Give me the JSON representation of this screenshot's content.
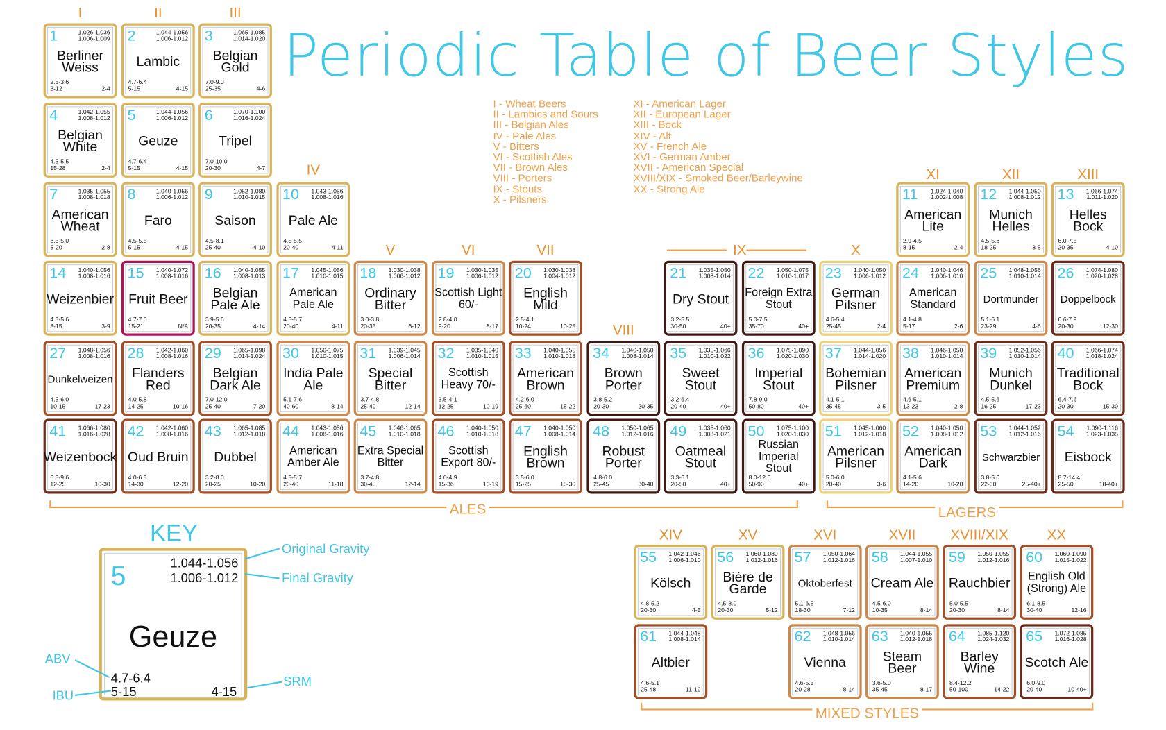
{
  "title": "Periodic Table of Beer Styles",
  "legend_left": [
    "I - Wheat Beers",
    "II - Lambics and Sours",
    "III - Belgian Ales",
    "IV - Pale Ales",
    "V - Bitters",
    "VI - Scottish Ales",
    "VII - Brown Ales",
    "VIII - Porters",
    "IX - Stouts",
    "X - Pilsners"
  ],
  "legend_right": [
    "XI - American Lager",
    "XII - European Lager",
    "XIII - Bock",
    "XIV - Alt",
    "XV - French Ale",
    "XVI - German Amber",
    "XVII - American Special",
    "XVIII/XIX - Smoked Beer/Barleywine",
    "XX - Strong Ale"
  ],
  "colors": {
    "title": "#3fc7e6",
    "group_labels": "#f0a046",
    "numbers": "#3fc7e6",
    "gold": "#d8b35a",
    "pale": "#e9d27a",
    "light_brown": "#cd8748",
    "brown": "#a24e26",
    "dark_brown": "#6b2b1a",
    "very_dark": "#3f1a14",
    "fruit": "#b0125a"
  },
  "groups": [
    "I",
    "II",
    "III",
    "IV",
    "V",
    "VI",
    "VII",
    "VIII",
    "IX",
    "X",
    "XI",
    "XII",
    "XIII",
    "XIV",
    "XV",
    "XVI",
    "XVII",
    "XVIII/XIX",
    "XX"
  ],
  "sections": {
    "ales": "ALES",
    "lagers": "LAGERS",
    "mixed": "MIXED STYLES"
  },
  "styles": [
    {
      "n": "1",
      "name": "Berliner Weiss",
      "og": "1.026-1.036",
      "fg": "1.006-1.009",
      "abv": "2.5-3.6",
      "ibu": "3-12",
      "srm": "2-4",
      "color": "gold"
    },
    {
      "n": "2",
      "name": "Lambic",
      "og": "1.044-1.056",
      "fg": "1.006-1.012",
      "abv": "4.7-6.4",
      "ibu": "5-15",
      "srm": "4-15",
      "color": "gold"
    },
    {
      "n": "3",
      "name": "Belgian Gold",
      "og": "1.065-1.085",
      "fg": "1.014-1.020",
      "abv": "7.0-9.0",
      "ibu": "25-35",
      "srm": "4-6",
      "color": "gold"
    },
    {
      "n": "4",
      "name": "Belgian White",
      "og": "1.042-1.055",
      "fg": "1.008-1.012",
      "abv": "4.5-5.5",
      "ibu": "15-28",
      "srm": "2-4",
      "color": "gold"
    },
    {
      "n": "5",
      "name": "Geuze",
      "og": "1.044-1.056",
      "fg": "1.006-1.012",
      "abv": "4.7-6.4",
      "ibu": "5-15",
      "srm": "4-15",
      "color": "gold"
    },
    {
      "n": "6",
      "name": "Tripel",
      "og": "1.070-1.100",
      "fg": "1.016-1.024",
      "abv": "7.0-10.0",
      "ibu": "20-30",
      "srm": "4-7",
      "color": "gold"
    },
    {
      "n": "7",
      "name": "American Wheat",
      "og": "1.035-1.055",
      "fg": "1.008-1.018",
      "abv": "3.5-5.0",
      "ibu": "5-20",
      "srm": "2-8",
      "color": "gold"
    },
    {
      "n": "8",
      "name": "Faro",
      "og": "1.040-1.056",
      "fg": "1.006-1.012",
      "abv": "4.5-5.5",
      "ibu": "5-15",
      "srm": "4-15",
      "color": "gold"
    },
    {
      "n": "9",
      "name": "Saison",
      "og": "1.052-1.080",
      "fg": "1.010-1.015",
      "abv": "4.5-8.1",
      "ibu": "25-40",
      "srm": "4-10",
      "color": "gold"
    },
    {
      "n": "10",
      "name": "Pale Ale",
      "og": "1.043-1.056",
      "fg": "1.008-1.016",
      "abv": "4.5-5.5",
      "ibu": "20-40",
      "srm": "4-11",
      "color": "gold"
    },
    {
      "n": "11",
      "name": "American Lite",
      "og": "1.024-1.040",
      "fg": "1.002-1.008",
      "abv": "2.9-4.5",
      "ibu": "8-15",
      "srm": "2-4",
      "color": "gold"
    },
    {
      "n": "12",
      "name": "Munich Helles",
      "og": "1.044-1.050",
      "fg": "1.008-1.012",
      "abv": "4.5-5.6",
      "ibu": "18-25",
      "srm": "3-5",
      "color": "gold"
    },
    {
      "n": "13",
      "name": "Helles Bock",
      "og": "1.066-1.074",
      "fg": "1.011-1.020",
      "abv": "6.0-7.5",
      "ibu": "20-35",
      "srm": "4-10",
      "color": "gold"
    },
    {
      "n": "14",
      "name": "Weizenbier",
      "og": "1.040-1.056",
      "fg": "1.008-1.016",
      "abv": "4.3-5.6",
      "ibu": "8-15",
      "srm": "3-9",
      "color": "gold"
    },
    {
      "n": "15",
      "name": "Fruit Beer",
      "og": "1.040-1.072",
      "fg": "1.008-1.016",
      "abv": "4.7-7.0",
      "ibu": "15-21",
      "srm": "N/A",
      "color": "fruit"
    },
    {
      "n": "16",
      "name": "Belgian Pale Ale",
      "og": "1.040-1.055",
      "fg": "1.008-1.013",
      "abv": "3.9-5.6",
      "ibu": "20-35",
      "srm": "4-14",
      "color": "gold"
    },
    {
      "n": "17",
      "name": "American Pale Ale",
      "og": "1.045-1.056",
      "fg": "1.010-1.015",
      "abv": "4.5-5.7",
      "ibu": "20-40",
      "srm": "4-11",
      "color": "gold"
    },
    {
      "n": "18",
      "name": "Ordinary Bitter",
      "og": "1.030-1.038",
      "fg": "1.006-1.012",
      "abv": "3.0-3.8",
      "ibu": "20-35",
      "srm": "6-12",
      "color": "light_brown"
    },
    {
      "n": "19",
      "name": "Scottish Light 60/-",
      "og": "1.030-1.035",
      "fg": "1.006-1.012",
      "abv": "2.8-4.0",
      "ibu": "9-20",
      "srm": "8-17",
      "color": "light_brown"
    },
    {
      "n": "20",
      "name": "English Mild",
      "og": "1.030-1.038",
      "fg": "1.004-1.012",
      "abv": "2.5-4.1",
      "ibu": "10-24",
      "srm": "10-25",
      "color": "brown"
    },
    {
      "n": "21",
      "name": "Dry Stout",
      "og": "1.035-1.050",
      "fg": "1.008-1.014",
      "abv": "3.2-5.5",
      "ibu": "30-50",
      "srm": "40+",
      "color": "very_dark"
    },
    {
      "n": "22",
      "name": "Foreign Extra Stout",
      "og": "1.050-1.075",
      "fg": "1.010-1.017",
      "abv": "5.0-7.5",
      "ibu": "35-70",
      "srm": "40+",
      "color": "very_dark"
    },
    {
      "n": "23",
      "name": "German Pilsner",
      "og": "1.040-1.050",
      "fg": "1.006-1.012",
      "abv": "4.6-5.4",
      "ibu": "25-45",
      "srm": "2-4",
      "color": "pale"
    },
    {
      "n": "24",
      "name": "American Standard",
      "og": "1.040-1.046",
      "fg": "1.006-1.010",
      "abv": "4.1-4.8",
      "ibu": "5-17",
      "srm": "2-6",
      "color": "light_brown"
    },
    {
      "n": "25",
      "name": "Dortmunder",
      "og": "1.048-1.056",
      "fg": "1.010-1.014",
      "abv": "5.1-6.1",
      "ibu": "23-29",
      "srm": "4-6",
      "color": "light_brown"
    },
    {
      "n": "26",
      "name": "Doppelbock",
      "og": "1.074-1.080",
      "fg": "1.020-1.028",
      "abv": "6.6-7.9",
      "ibu": "20-30",
      "srm": "12-30",
      "color": "dark_brown"
    },
    {
      "n": "27",
      "name": "Dunkelweizen",
      "og": "1.048-1.056",
      "fg": "1.008-1.016",
      "abv": "4.5-6.0",
      "ibu": "10-15",
      "srm": "17-23",
      "color": "brown"
    },
    {
      "n": "28",
      "name": "Flanders Red",
      "og": "1.042-1.060",
      "fg": "1.008-1.016",
      "abv": "4.0-5.8",
      "ibu": "14-25",
      "srm": "10-16",
      "color": "brown"
    },
    {
      "n": "29",
      "name": "Belgian Dark Ale",
      "og": "1.065-1.098",
      "fg": "1.014-1.024",
      "abv": "7.0-12.0",
      "ibu": "25-40",
      "srm": "7-20",
      "color": "brown"
    },
    {
      "n": "30",
      "name": "India Pale Ale",
      "og": "1.050-1.075",
      "fg": "1.010-1.015",
      "abv": "5.1-7.6",
      "ibu": "40-60",
      "srm": "8-14",
      "color": "light_brown"
    },
    {
      "n": "31",
      "name": "Special Bitter",
      "og": "1.039-1.045",
      "fg": "1.006-1.014",
      "abv": "3.7-4.8",
      "ibu": "25-40",
      "srm": "12-14",
      "color": "light_brown"
    },
    {
      "n": "32",
      "name": "Scottish Heavy 70/-",
      "og": "1.035-1.040",
      "fg": "1.010-1.015",
      "abv": "3.5-4.1",
      "ibu": "12-25",
      "srm": "10-19",
      "color": "brown"
    },
    {
      "n": "33",
      "name": "American Brown",
      "og": "1.040-1.055",
      "fg": "1.010-1.018",
      "abv": "4.2-6.0",
      "ibu": "25-60",
      "srm": "15-22",
      "color": "brown"
    },
    {
      "n": "34",
      "name": "Brown Porter",
      "og": "1.040-1.050",
      "fg": "1.008-1.014",
      "abv": "3.8-5.2",
      "ibu": "20-30",
      "srm": "20-35",
      "color": "very_dark"
    },
    {
      "n": "35",
      "name": "Sweet Stout",
      "og": "1.035-1.066",
      "fg": "1.010-1.022",
      "abv": "3.2-6.4",
      "ibu": "20-40",
      "srm": "40+",
      "color": "very_dark"
    },
    {
      "n": "36",
      "name": "Imperial Stout",
      "og": "1.075-1.090",
      "fg": "1.020-1.030",
      "abv": "7.8-9.0",
      "ibu": "50-80",
      "srm": "40+",
      "color": "very_dark"
    },
    {
      "n": "37",
      "name": "Bohemian Pilsner",
      "og": "1.044-1.056",
      "fg": "1.014-1.020",
      "abv": "4.1-5.1",
      "ibu": "35-45",
      "srm": "3-5",
      "color": "pale"
    },
    {
      "n": "38",
      "name": "American Premium",
      "og": "1.046-1.050",
      "fg": "1.010-1.014",
      "abv": "4.6-5.1",
      "ibu": "13-23",
      "srm": "2-8",
      "color": "light_brown"
    },
    {
      "n": "39",
      "name": "Munich Dunkel",
      "og": "1.052-1.056",
      "fg": "1.010-1.014",
      "abv": "4.5-5.6",
      "ibu": "16-25",
      "srm": "17-23",
      "color": "dark_brown"
    },
    {
      "n": "40",
      "name": "Traditional Bock",
      "og": "1.066-1.074",
      "fg": "1.018-1.024",
      "abv": "6.4-7.6",
      "ibu": "20-30",
      "srm": "15-30",
      "color": "dark_brown"
    },
    {
      "n": "41",
      "name": "Weizenbock",
      "og": "1.066-1.080",
      "fg": "1.016-1.028",
      "abv": "6.5-9.6",
      "ibu": "12-25",
      "srm": "10-30",
      "color": "dark_brown"
    },
    {
      "n": "42",
      "name": "Oud Bruin",
      "og": "1.042-1.060",
      "fg": "1.008-1.016",
      "abv": "4.0-6.5",
      "ibu": "14-30",
      "srm": "12-20",
      "color": "brown"
    },
    {
      "n": "43",
      "name": "Dubbel",
      "og": "1.065-1.085",
      "fg": "1.012-1.018",
      "abv": "3.2-8.0",
      "ibu": "20-25",
      "srm": "10-20",
      "color": "brown"
    },
    {
      "n": "44",
      "name": "American Amber Ale",
      "og": "1.043-1.056",
      "fg": "1.008-1.016",
      "abv": "4.5-5.7",
      "ibu": "20-40",
      "srm": "11-18",
      "color": "light_brown"
    },
    {
      "n": "45",
      "name": "Extra Special Bitter",
      "og": "1.046-1.065",
      "fg": "1.010-1.018",
      "abv": "3.7-4.8",
      "ibu": "30-45",
      "srm": "12-14",
      "color": "light_brown"
    },
    {
      "n": "46",
      "name": "Scottish Export 80/-",
      "og": "1.040-1.050",
      "fg": "1.010-1.018",
      "abv": "4.0-4.9",
      "ibu": "15-36",
      "srm": "10-19",
      "color": "brown"
    },
    {
      "n": "47",
      "name": "English Brown",
      "og": "1.040-1.050",
      "fg": "1.008-1.014",
      "abv": "3.5-6.0",
      "ibu": "15-25",
      "srm": "15-30",
      "color": "brown"
    },
    {
      "n": "48",
      "name": "Robust Porter",
      "og": "1.050-1.065",
      "fg": "1.012-1.016",
      "abv": "4.8-6.0",
      "ibu": "25-45",
      "srm": "30-40",
      "color": "very_dark"
    },
    {
      "n": "49",
      "name": "Oatmeal Stout",
      "og": "1.035-1.060",
      "fg": "1.008-1.021",
      "abv": "3.3-6.1",
      "ibu": "20-50",
      "srm": "40+",
      "color": "very_dark"
    },
    {
      "n": "50",
      "name": "Russian Imperial Stout",
      "og": "1.075-1.100",
      "fg": "1.020-1.030",
      "abv": "8.0-12.0",
      "ibu": "50-90",
      "srm": "40+",
      "color": "very_dark"
    },
    {
      "n": "51",
      "name": "American Pilsner",
      "og": "1.045-1.060",
      "fg": "1.012-1.018",
      "abv": "5.0-6.0",
      "ibu": "20-40",
      "srm": "3-6",
      "color": "pale"
    },
    {
      "n": "52",
      "name": "American Dark",
      "og": "1.040-1.050",
      "fg": "1.008-1.012",
      "abv": "4.1-5.6",
      "ibu": "14-20",
      "srm": "10-20",
      "color": "light_brown"
    },
    {
      "n": "53",
      "name": "Schwarzbier",
      "og": "1.044-1.052",
      "fg": "1.012-1.016",
      "abv": "3.8-5.0",
      "ibu": "22-30",
      "srm": "25-40+",
      "color": "dark_brown"
    },
    {
      "n": "54",
      "name": "Eisbock",
      "og": "1.090-1.116",
      "fg": "1.023-1.035",
      "abv": "8.7-14.4",
      "ibu": "25-50",
      "srm": "18-40+",
      "color": "dark_brown"
    },
    {
      "n": "55",
      "name": "Kölsch",
      "og": "1.042-1.046",
      "fg": "1.006-1.010",
      "abv": "4.8-5.2",
      "ibu": "20-30",
      "srm": "4-5",
      "color": "gold"
    },
    {
      "n": "56",
      "name": "Biére de Garde",
      "og": "1.060-1.080",
      "fg": "1.012-1.016",
      "abv": "4.5-8.0",
      "ibu": "20-30",
      "srm": "5-12",
      "color": "gold"
    },
    {
      "n": "57",
      "name": "Oktoberfest",
      "og": "1.050-1.064",
      "fg": "1.012-1.016",
      "abv": "5.1-6.5",
      "ibu": "18-30",
      "srm": "7-12",
      "color": "light_brown"
    },
    {
      "n": "58",
      "name": "Cream Ale",
      "og": "1.044-1.055",
      "fg": "1.007-1.010",
      "abv": "4.5-6.0",
      "ibu": "10-35",
      "srm": "8-14",
      "color": "light_brown"
    },
    {
      "n": "59",
      "name": "Rauchbier",
      "og": "1.050-1.055",
      "fg": "1.012-1.016",
      "abv": "5.0-5.5",
      "ibu": "20-30",
      "srm": "8-14",
      "color": "brown"
    },
    {
      "n": "60",
      "name": "English Old (Strong) Ale",
      "og": "1.060-1.090",
      "fg": "1.015-1.022",
      "abv": "6.1-8.5",
      "ibu": "30-40",
      "srm": "12-16",
      "color": "brown"
    },
    {
      "n": "61",
      "name": "Altbier",
      "og": "1.044-1.048",
      "fg": "1.008-1.014",
      "abv": "4.6-5.1",
      "ibu": "25-48",
      "srm": "11-19",
      "color": "brown"
    },
    {
      "n": "62",
      "name": "Vienna",
      "og": "1.048-1.056",
      "fg": "1.010-1.014",
      "abv": "4.6-5.5",
      "ibu": "20-28",
      "srm": "8-14",
      "color": "light_brown"
    },
    {
      "n": "63",
      "name": "Steam Beer",
      "og": "1.040-1.055",
      "fg": "1.012-1.018",
      "abv": "3.6-5.0",
      "ibu": "35-45",
      "srm": "8-17",
      "color": "light_brown"
    },
    {
      "n": "64",
      "name": "Barley Wine",
      "og": "1.085-1.120",
      "fg": "1.024-1.032",
      "abv": "8.4-12.2",
      "ibu": "50-100",
      "srm": "14-22",
      "color": "brown"
    },
    {
      "n": "65",
      "name": "Scotch Ale",
      "og": "1.072-1.085",
      "fg": "1.016-1.028",
      "abv": "6.0-9.0",
      "ibu": "20-40",
      "srm": "10-40+",
      "color": "dark_brown"
    }
  ],
  "key": {
    "title": "KEY",
    "n": "5",
    "og": "1.044-1.056",
    "fg": "1.006-1.012",
    "name": "Geuze",
    "abv": "4.7-6.4",
    "ibu": "5-15",
    "srm": "4-15",
    "labels": {
      "og": "Original Gravity",
      "fg": "Final Gravity",
      "abv": "ABV",
      "ibu": "IBU",
      "srm": "SRM"
    }
  }
}
